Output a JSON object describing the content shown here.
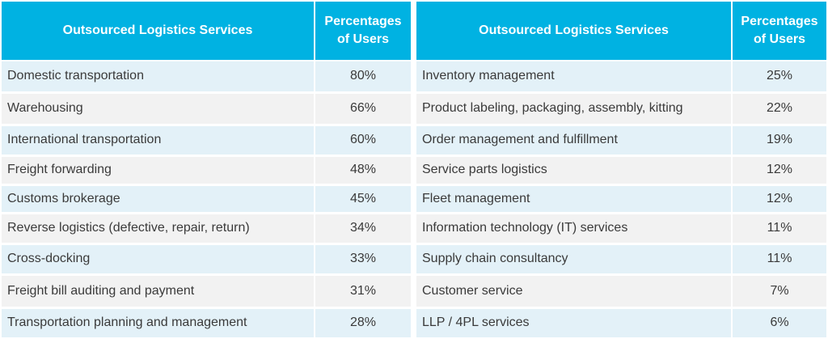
{
  "left_table": {
    "headers": {
      "service": "Outsourced Logistics Services",
      "percent_line1": "Percentages",
      "percent_line2": "of Users"
    },
    "rows": [
      {
        "service": "Domestic transportation",
        "percent": "80%"
      },
      {
        "service": "Warehousing",
        "percent": "66%"
      },
      {
        "service": "International transportation",
        "percent": "60%"
      },
      {
        "service": "Freight forwarding",
        "percent": "48%"
      },
      {
        "service": "Customs brokerage",
        "percent": "45%"
      },
      {
        "service": "Reverse logistics (defective, repair, return)",
        "percent": "34%"
      },
      {
        "service": "Cross-docking",
        "percent": "33%"
      },
      {
        "service": "Freight bill auditing and payment",
        "percent": "31%"
      },
      {
        "service": "Transportation planning and management",
        "percent": "28%"
      }
    ]
  },
  "right_table": {
    "headers": {
      "service": "Outsourced Logistics Services",
      "percent_line1": "Percentages",
      "percent_line2": "of Users"
    },
    "rows": [
      {
        "service": "Inventory management",
        "percent": "25%"
      },
      {
        "service": "Product labeling, packaging, assembly, kitting",
        "percent": "22%"
      },
      {
        "service": "Order management and fulfillment",
        "percent": "19%"
      },
      {
        "service": "Service parts logistics",
        "percent": "12%"
      },
      {
        "service": "Fleet management",
        "percent": "12%"
      },
      {
        "service": "Information technology (IT) services",
        "percent": "11%"
      },
      {
        "service": "Supply chain consultancy",
        "percent": "11%"
      },
      {
        "service": "Customer service",
        "percent": "7%"
      },
      {
        "service": "LLP / 4PL services",
        "percent": "6%"
      }
    ]
  },
  "colors": {
    "header_bg": "#00b2e2",
    "row_blue": "#e3f1f8",
    "row_gray": "#f2f2f2",
    "text": "#3a3a3a"
  }
}
